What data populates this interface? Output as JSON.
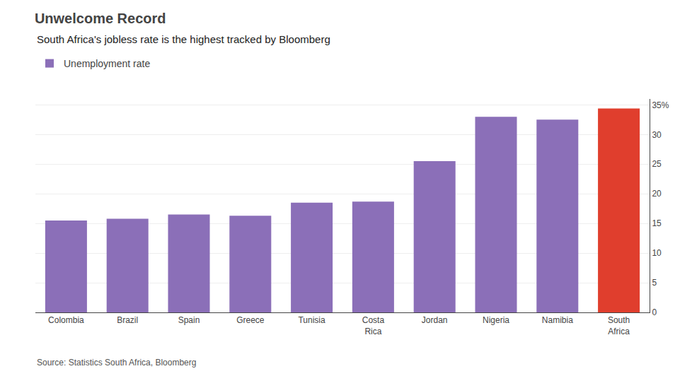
{
  "chart_data": {
    "type": "bar",
    "title": "Unwelcome Record",
    "subtitle": "South Africa's jobless rate is the highest tracked by Bloomberg",
    "source": "Source: Statistics South Africa, Bloomberg",
    "categories": [
      "Colombia",
      "Brazil",
      "Spain",
      "Greece",
      "Tunisia",
      "Costa\nRica",
      "Jordan",
      "Nigeria",
      "Namibia",
      "South\nAfrica"
    ],
    "series": [
      {
        "name": "Unemployment rate",
        "values": [
          15.5,
          15.8,
          16.5,
          16.3,
          18.5,
          18.7,
          25.5,
          33.0,
          32.5,
          34.4
        ],
        "colors": [
          "#8B6FB8",
          "#8B6FB8",
          "#8B6FB8",
          "#8B6FB8",
          "#8B6FB8",
          "#8B6FB8",
          "#8B6FB8",
          "#8B6FB8",
          "#8B6FB8",
          "#E03E2D"
        ]
      }
    ],
    "ylim": [
      0,
      36
    ],
    "yticks": [
      0,
      5,
      10,
      15,
      20,
      25,
      30,
      {
        "value": 35,
        "label": "35%"
      }
    ],
    "grid": true,
    "legend": "top-left"
  }
}
